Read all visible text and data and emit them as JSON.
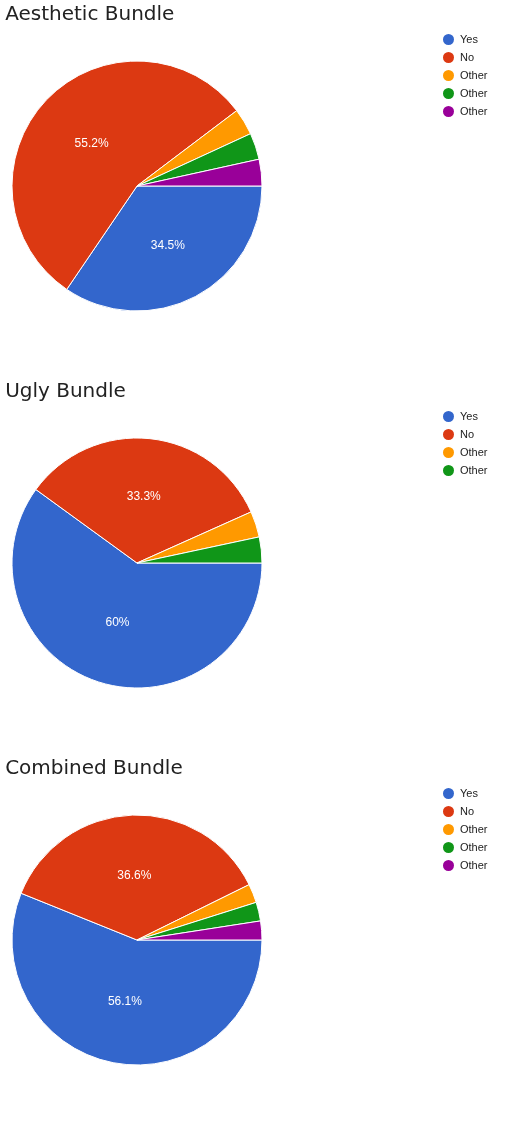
{
  "chart_data": [
    {
      "type": "pie",
      "title": "Aesthetic Bundle",
      "categories": [
        "Yes",
        "No",
        "Other",
        "Other",
        "Other"
      ],
      "values": [
        34.5,
        55.2,
        3.43,
        3.43,
        3.44
      ],
      "colors": [
        "#3366cc",
        "#dc3912",
        "#ff9900",
        "#109618",
        "#990099"
      ],
      "value_labels": [
        "34.5%",
        "55.2%",
        null,
        null,
        null
      ],
      "legend": "top right"
    },
    {
      "type": "pie",
      "title": "Ugly Bundle",
      "categories": [
        "Yes",
        "No",
        "Other",
        "Other"
      ],
      "values": [
        60,
        33.3,
        3.35,
        3.35
      ],
      "colors": [
        "#3366cc",
        "#dc3912",
        "#ff9900",
        "#109618"
      ],
      "value_labels": [
        "60%",
        "33.3%",
        null,
        null
      ],
      "legend": "top right"
    },
    {
      "type": "pie",
      "title": "Combined Bundle",
      "categories": [
        "Yes",
        "No",
        "Other",
        "Other",
        "Other"
      ],
      "values": [
        56.1,
        36.6,
        2.43,
        2.43,
        2.44
      ],
      "colors": [
        "#3366cc",
        "#dc3912",
        "#ff9900",
        "#109618",
        "#990099"
      ],
      "value_labels": [
        "56.1%",
        "36.6%",
        null,
        null,
        null
      ],
      "legend": "top right"
    }
  ]
}
